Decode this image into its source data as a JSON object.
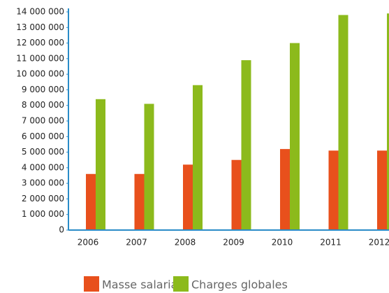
{
  "chart_data": {
    "type": "bar",
    "categories": [
      "2006",
      "2007",
      "2008",
      "2009",
      "2010",
      "2011",
      "2012"
    ],
    "series": [
      {
        "name": "Masse salariale",
        "color": "#e8501c",
        "values": [
          3600000,
          3600000,
          4200000,
          4500000,
          5200000,
          5100000,
          5100000
        ]
      },
      {
        "name": "Charges globales",
        "color": "#8cba1c",
        "values": [
          8400000,
          8100000,
          9300000,
          10900000,
          12000000,
          13800000,
          13900000
        ]
      }
    ],
    "ylim": [
      0,
      14000000
    ],
    "yticks": [
      0,
      {
        "value": 1000000,
        "label": "1 000 000"
      },
      {
        "value": 2000000,
        "label": "2 000 000"
      },
      {
        "value": 3000000,
        "label": "3 000 000"
      },
      {
        "value": 4000000,
        "label": "4 000 000"
      },
      {
        "value": 5000000,
        "label": "5 000 000"
      },
      {
        "value": 6000000,
        "label": "6 000 000"
      },
      {
        "value": 7000000,
        "label": "7 000 000"
      },
      {
        "value": 8000000,
        "label": "8 000 000"
      },
      {
        "value": 9000000,
        "label": "9 000 000"
      },
      {
        "value": 10000000,
        "label": "10 000 000"
      },
      {
        "value": 11000000,
        "label": "11 000 000"
      },
      {
        "value": 12000000,
        "label": "12 000 000"
      },
      {
        "value": 13000000,
        "label": "13 000 000"
      },
      {
        "value": 14000000,
        "label": "14 000 000"
      }
    ],
    "grid": false,
    "legend": "bottom",
    "axis_color": "#2a8cc8"
  }
}
